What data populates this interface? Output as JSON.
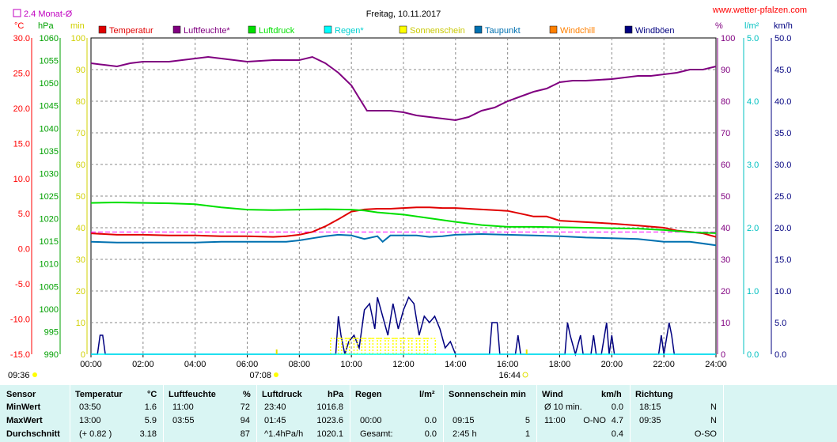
{
  "title": "Freitag, 10.11.2017",
  "website": "www.wetter-pfalzen.com",
  "avg_label": "2.4 Monat-Ø",
  "sunrise": "07:08",
  "sunset": "16:44",
  "now_time": "09:36",
  "colors": {
    "temperature": "#e00000",
    "humidity": "#800080",
    "pressure": "#00e000",
    "rain": "#00ffff",
    "sunshine": "#ffff00",
    "dewpoint": "#0070b0",
    "windchill": "#ff8000",
    "gust": "#000080",
    "axis_temp": "#ff0000",
    "axis_pressure": "#00a000",
    "axis_sun": "#d0d000",
    "axis_rain": "#00c0c0"
  },
  "legend": [
    {
      "label": "Temperatur",
      "color": "#e00000"
    },
    {
      "label": "Luftfeuchte*",
      "color": "#800080"
    },
    {
      "label": "Luftdruck",
      "color": "#00e000"
    },
    {
      "label": "Regen*",
      "color": "#00ffff"
    },
    {
      "label": "Sonnenschein",
      "color": "#ffff00"
    },
    {
      "label": "Taupunkt",
      "color": "#0070b0"
    },
    {
      "label": "Windchill",
      "color": "#ff8000"
    },
    {
      "label": "Windböen",
      "color": "#000080"
    }
  ],
  "axes": {
    "temp_unit": "°C",
    "pressure_unit": "hPa",
    "sun_unit": "min",
    "humidity_unit": "%",
    "rain_unit": "l/m²",
    "wind_unit": "km/h",
    "temp_ticks": [
      "30.0",
      "25.0",
      "20.0",
      "15.0",
      "10.0",
      "5.0",
      "0.0",
      "-5.0",
      "-10.0",
      "-15.0"
    ],
    "pressure_ticks": [
      "1060",
      "1055",
      "1050",
      "1045",
      "1040",
      "1035",
      "1030",
      "1025",
      "1020",
      "1015",
      "1010",
      "1005",
      "1000",
      "995",
      "990"
    ],
    "sun_ticks": [
      "100",
      "90",
      "80",
      "70",
      "60",
      "50",
      "40",
      "30",
      "20",
      "10",
      "0"
    ],
    "humidity_ticks": [
      "100",
      "90",
      "80",
      "70",
      "60",
      "50",
      "40",
      "30",
      "20",
      "10",
      "0"
    ],
    "rain_ticks": [
      "5.0",
      "4.0",
      "3.0",
      "2.0",
      "1.0",
      "0.0"
    ],
    "wind_ticks": [
      "50.0",
      "45.0",
      "40.0",
      "35.0",
      "30.0",
      "25.0",
      "20.0",
      "15.0",
      "10.0",
      "5.0",
      "0.0"
    ],
    "time_ticks": [
      "00:00",
      "02:00",
      "04:00",
      "06:00",
      "08:00",
      "10:00",
      "12:00",
      "14:00",
      "16:00",
      "18:00",
      "20:00",
      "22:00",
      "24:00"
    ]
  },
  "chart_data": {
    "type": "line",
    "title": "Freitag, 10.11.2017",
    "x_unit": "hours",
    "xlim": [
      0,
      24
    ],
    "series": [
      {
        "name": "Luftfeuchte*",
        "axis": "%",
        "ylim": [
          0,
          100
        ],
        "x": [
          0,
          0.5,
          1,
          1.5,
          2,
          3,
          4,
          4.5,
          5,
          5.5,
          6,
          7,
          8,
          8.5,
          9,
          9.5,
          10,
          10.3,
          10.6,
          11,
          11.5,
          12,
          12.5,
          13,
          13.5,
          14,
          14.5,
          15,
          15.5,
          16,
          16.5,
          17,
          17.5,
          18,
          18.5,
          19,
          20,
          20.5,
          21,
          21.5,
          22,
          22.5,
          23,
          23.5,
          24
        ],
        "y": [
          92,
          91.5,
          91,
          92,
          92.5,
          92.5,
          93.5,
          94,
          93.5,
          93,
          92.5,
          93,
          93,
          94,
          92,
          89,
          85,
          81,
          77,
          77,
          77,
          76.5,
          75.5,
          75,
          74.5,
          74,
          75,
          77,
          78,
          80,
          81.5,
          83,
          84,
          86,
          86.5,
          86.5,
          87,
          87.5,
          88,
          88,
          88.5,
          89,
          90,
          90,
          91
        ]
      },
      {
        "name": "Temperatur",
        "axis": "°C",
        "ylim": [
          -15,
          30
        ],
        "x": [
          0,
          1,
          2,
          3,
          4,
          5,
          6,
          7,
          7.5,
          8,
          8.5,
          9,
          9.5,
          10,
          10.5,
          11,
          11.5,
          12,
          12.5,
          13,
          13.5,
          14,
          15,
          16,
          16.5,
          17,
          17.5,
          18,
          19,
          20,
          21,
          22,
          22.5,
          23,
          23.5,
          24
        ],
        "y": [
          2.2,
          2.0,
          2.0,
          1.9,
          1.9,
          1.8,
          1.8,
          1.7,
          1.8,
          2.0,
          2.4,
          3.2,
          4.2,
          5.3,
          5.6,
          5.7,
          5.7,
          5.8,
          5.9,
          5.9,
          5.8,
          5.8,
          5.6,
          5.4,
          5.0,
          4.6,
          4.6,
          4.0,
          3.8,
          3.6,
          3.3,
          3.0,
          2.6,
          2.4,
          2.2,
          1.7
        ]
      },
      {
        "name": "Luftdruck",
        "axis": "hPa",
        "ylim": [
          990,
          1060
        ],
        "x": [
          0,
          1,
          2,
          3,
          4,
          5,
          6,
          7,
          8,
          9,
          10,
          10.5,
          11,
          12,
          13,
          14,
          15,
          16,
          17,
          18,
          19,
          20,
          21,
          22,
          23,
          24
        ],
        "y": [
          1023.5,
          1023.6,
          1023.5,
          1023.4,
          1023.2,
          1022.5,
          1022.0,
          1021.9,
          1022.0,
          1022.1,
          1022.0,
          1021.8,
          1021.4,
          1020.9,
          1020.1,
          1019.3,
          1018.6,
          1018.2,
          1018.2,
          1018.1,
          1018.0,
          1017.9,
          1017.8,
          1017.5,
          1017.0,
          1016.8
        ]
      },
      {
        "name": "Taupunkt",
        "axis": "°C",
        "ylim": [
          -15,
          30
        ],
        "x": [
          0,
          1,
          2,
          3,
          4,
          5,
          6,
          7,
          7.5,
          8,
          8.5,
          9,
          9.5,
          10,
          10.5,
          11,
          11.2,
          11.5,
          12,
          12.5,
          13,
          13.5,
          14,
          15,
          16,
          17,
          18,
          19,
          20,
          21,
          22,
          23,
          24
        ],
        "y": [
          1.0,
          0.9,
          0.9,
          0.9,
          0.9,
          1.0,
          1.0,
          1.0,
          1.0,
          1.2,
          1.5,
          1.8,
          2.0,
          1.9,
          1.4,
          1.8,
          1.0,
          1.9,
          1.9,
          1.9,
          1.7,
          1.8,
          2.0,
          2.1,
          2.0,
          1.9,
          1.8,
          1.6,
          1.5,
          1.4,
          1.0,
          1.0,
          0.5
        ]
      },
      {
        "name": "Windböen",
        "axis": "km/h",
        "ylim": [
          0,
          50
        ],
        "x": [
          0,
          0.25,
          0.35,
          0.45,
          0.55,
          9.4,
          9.5,
          9.6,
          9.75,
          9.9,
          10.1,
          10.3,
          10.5,
          10.7,
          10.9,
          11.0,
          11.2,
          11.4,
          11.6,
          11.8,
          12.0,
          12.2,
          12.4,
          12.6,
          12.8,
          13.0,
          13.2,
          13.4,
          13.6,
          13.8,
          14.0,
          15.3,
          15.4,
          15.5,
          15.6,
          15.7,
          15.8,
          16.3,
          16.4,
          16.5,
          16.6,
          18.2,
          18.3,
          18.4,
          18.6,
          18.8,
          18.9,
          19.2,
          19.3,
          19.4,
          19.6,
          19.8,
          19.9,
          20.0,
          20.1,
          20.2,
          21.8,
          21.9,
          22.0,
          22.2,
          22.3,
          22.4,
          22.5,
          24
        ],
        "y": [
          0,
          0,
          3,
          3,
          0,
          0,
          6,
          3,
          0,
          2,
          3,
          1,
          7,
          8,
          4,
          9,
          6,
          3,
          8,
          4,
          7,
          9,
          8,
          3,
          6,
          5,
          6,
          4,
          1,
          2,
          0,
          0,
          5,
          5,
          5,
          0,
          0,
          0,
          3,
          0,
          0,
          0,
          5,
          3,
          0,
          3,
          0,
          0,
          3,
          0,
          0,
          5,
          0,
          3,
          0,
          0,
          0,
          3,
          0,
          5,
          3,
          0,
          0,
          0
        ]
      },
      {
        "name": "Sonnenschein",
        "axis": "min",
        "ylim": [
          0,
          100
        ],
        "x": [
          9.2,
          9.5,
          9.8,
          10.1,
          10.4,
          10.7,
          11.0,
          11.3,
          11.6,
          11.9,
          12.2,
          12.5,
          12.8
        ],
        "y": [
          5,
          5,
          5,
          5,
          5,
          5,
          5,
          5,
          5,
          5,
          5,
          5,
          5
        ]
      },
      {
        "name": "Regen*",
        "axis": "l/m²",
        "ylim": [
          0,
          5
        ],
        "x": [
          0,
          24
        ],
        "y": [
          0,
          0
        ]
      }
    ],
    "monthly_average_temp": 2.4,
    "grid": true
  },
  "table": {
    "headers": {
      "sensor": "Sensor",
      "temp": "Temperatur",
      "temp_unit": "°C",
      "hum": "Luftfeuchte",
      "hum_unit": "%",
      "press": "Luftdruck",
      "press_unit": "hPa",
      "rain": "Regen",
      "rain_unit": "l/m²",
      "sun": "Sonnenschein min",
      "wind": "Wind",
      "wind_unit": "km/h",
      "dir": "Richtung"
    },
    "rows": [
      {
        "label": "MinWert",
        "temp_time": "03:50",
        "temp_val": "1.6",
        "hum_time": "11:00",
        "hum_val": "72",
        "press_time": "23:40",
        "press_val": "1016.8",
        "rain_time": "",
        "rain_val": "",
        "sun_time": "",
        "sun_val": "",
        "wind_time": "Ø 10 min.",
        "wind_dir": "",
        "wind_val": "0.0",
        "dir_time": "18:15",
        "dir_val": "N"
      },
      {
        "label": "MaxWert",
        "temp_time": "13:00",
        "temp_val": "5.9",
        "hum_time": "03:55",
        "hum_val": "94",
        "press_time": "01:45",
        "press_val": "1023.6",
        "rain_time": "00:00",
        "rain_val": "0.0",
        "sun_time": "09:15",
        "sun_val": "5",
        "wind_time": "11:00",
        "wind_dir": "O-NO",
        "wind_val": "4.7",
        "dir_time": "09:35",
        "dir_val": "N"
      },
      {
        "label": "Durchschnitt",
        "temp_time": "(+ 0.82 )",
        "temp_val": "3.18",
        "hum_time": "",
        "hum_val": "87",
        "press_time": "^1.4hPa/h",
        "press_val": "1020.1",
        "rain_time": "Gesamt:",
        "rain_val": "0.0",
        "sun_time": "2:45 h",
        "sun_val": "1",
        "wind_time": "",
        "wind_dir": "",
        "wind_val": "0.4",
        "dir_time": "",
        "dir_val": "O-SO"
      }
    ]
  }
}
